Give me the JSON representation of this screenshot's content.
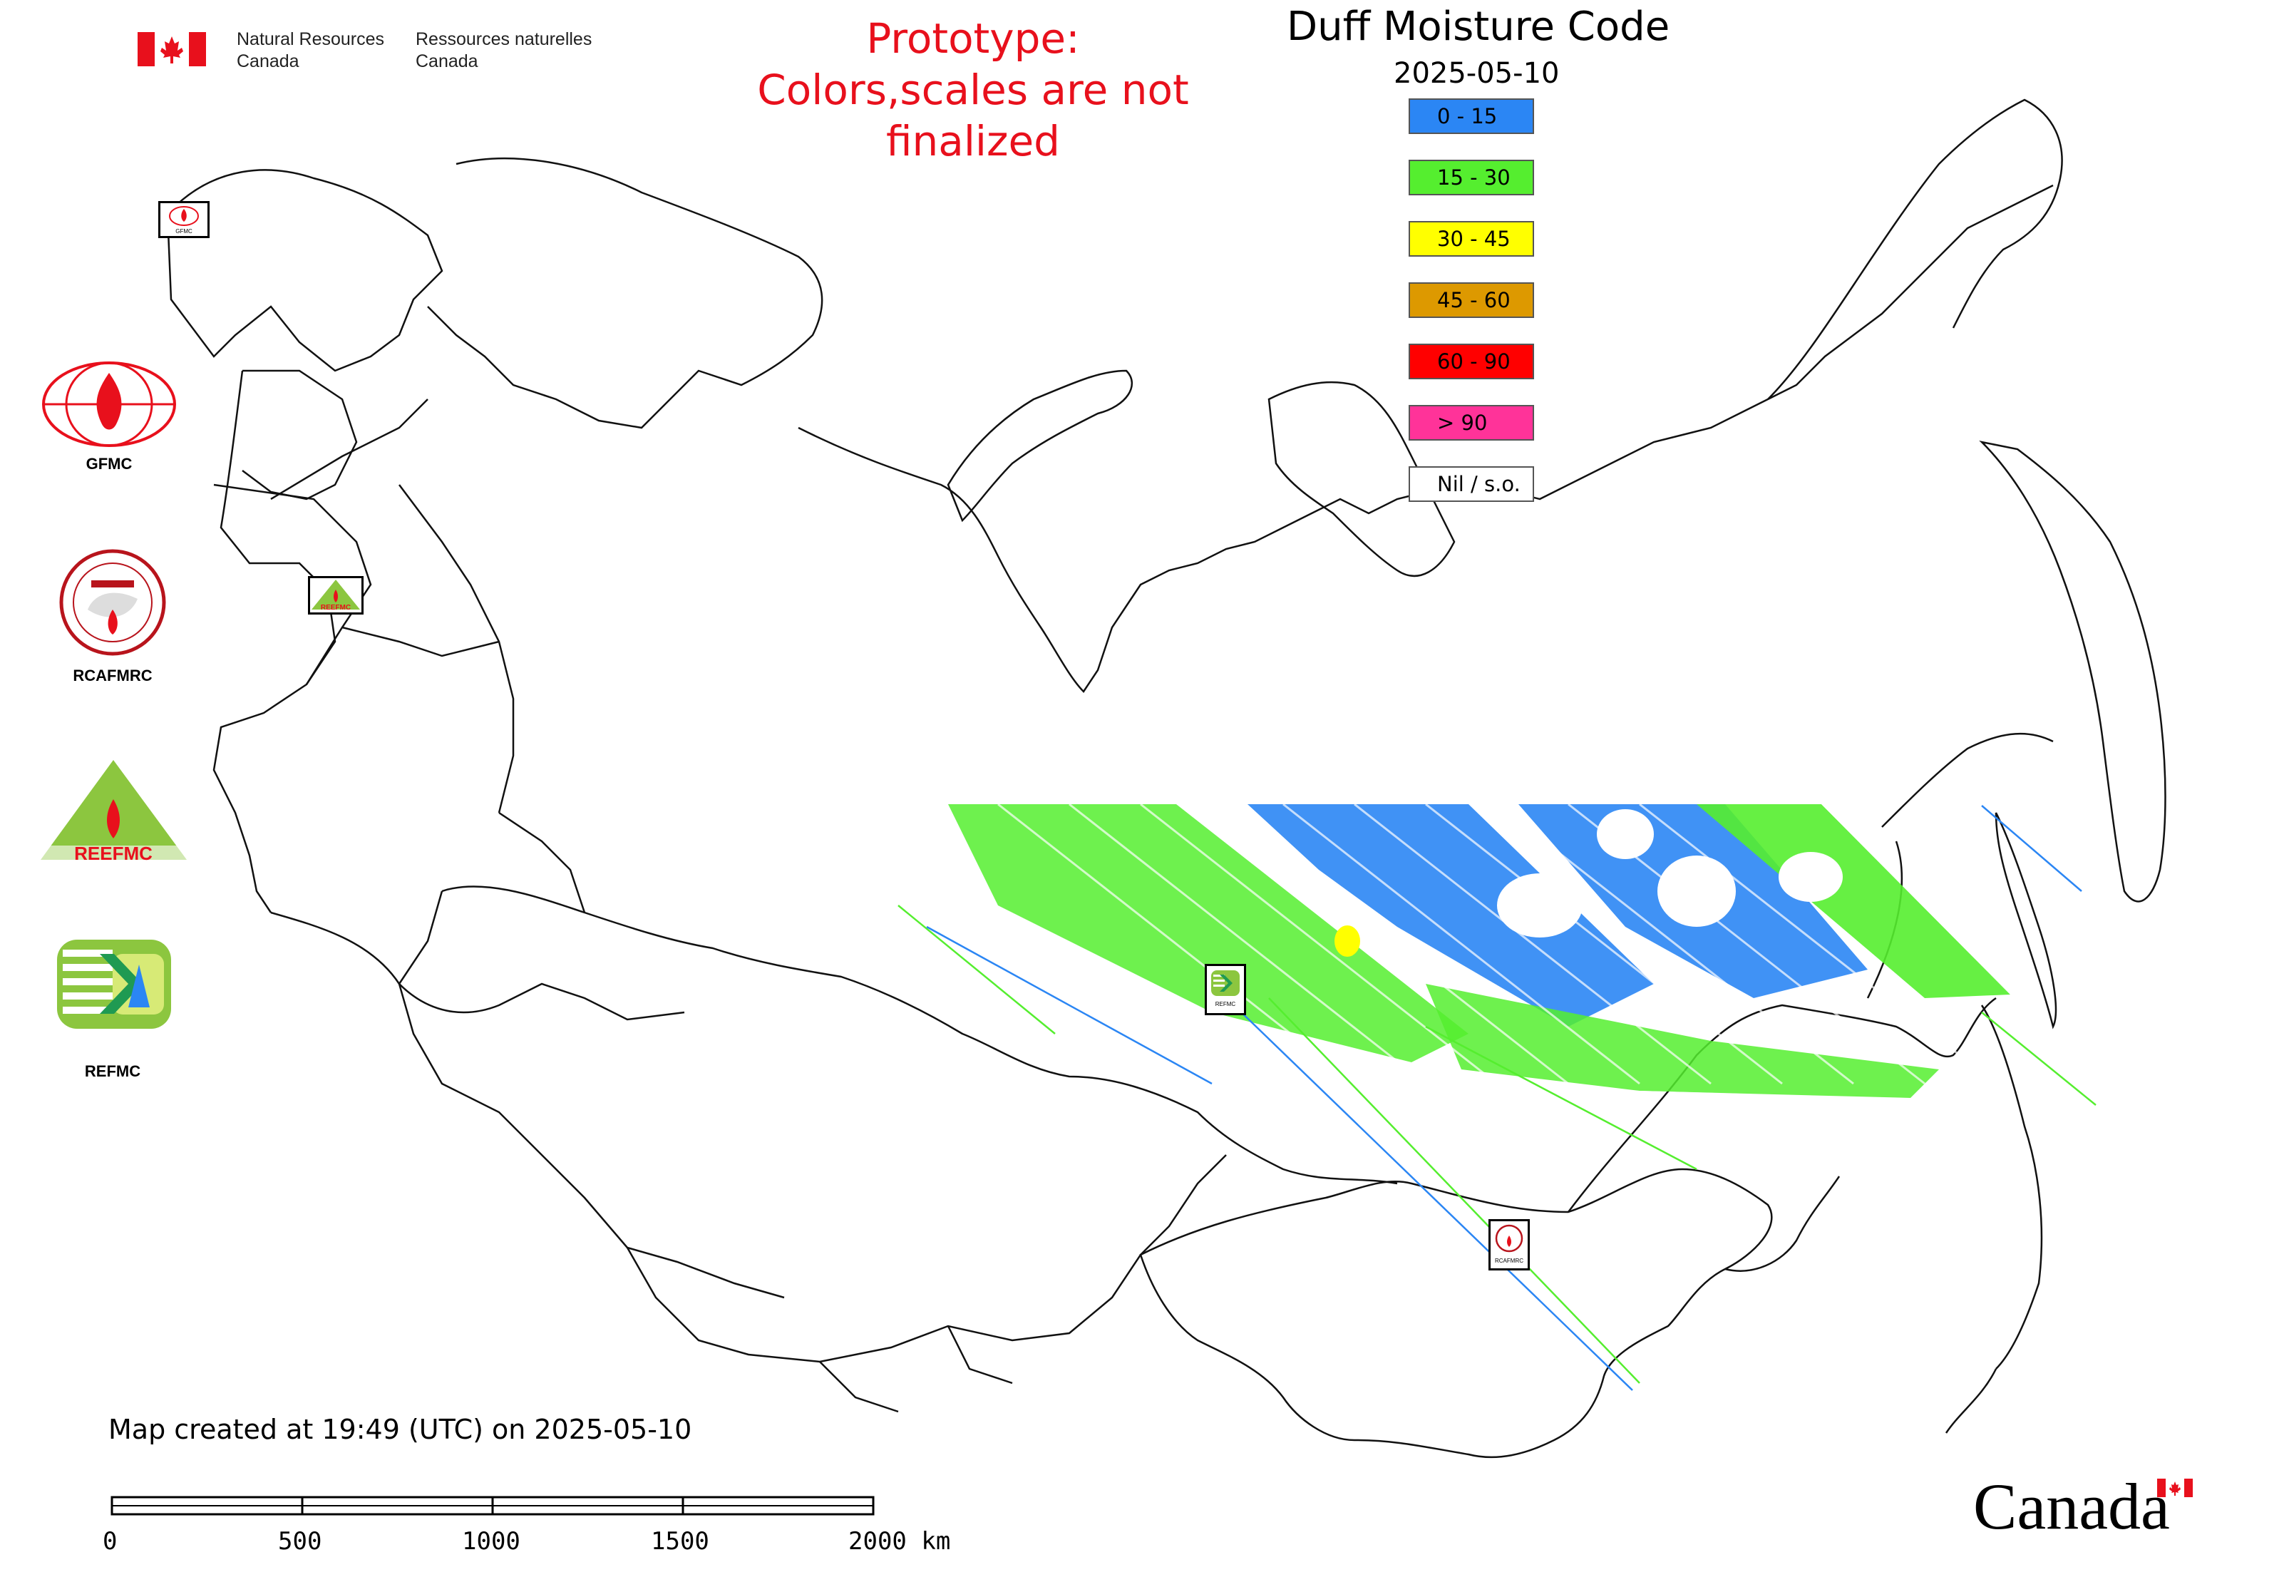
{
  "agency": {
    "name_en_line1": "Natural Resources",
    "name_en_line2": "Canada",
    "name_fr_line1": "Ressources naturelles",
    "name_fr_line2": "Canada"
  },
  "prototype_notice": {
    "line1": "Prototype:",
    "line2": "Colors,scales are not finalized",
    "color": "#e8101c"
  },
  "map": {
    "title": "Duff Moisture Code",
    "date": "2025-05-10"
  },
  "legend": [
    {
      "label": "0 - 15",
      "color": "#2b86f4"
    },
    {
      "label": "15 - 30",
      "color": "#55ee2f"
    },
    {
      "label": "30 - 45",
      "color": "#ffff00"
    },
    {
      "label": "45 - 60",
      "color": "#dd9900"
    },
    {
      "label": "60 - 90",
      "color": "#ff0000"
    },
    {
      "label": "> 90",
      "color": "#ff3399"
    },
    {
      "label": "Nil / s.o.",
      "color": "#ffffff"
    }
  ],
  "logos": [
    {
      "label": "GFMC",
      "icon": "gfmc-logo-icon"
    },
    {
      "label": "RCAFMRC",
      "icon": "rcafmrc-logo-icon"
    },
    {
      "label": "",
      "icon": "reefmc-logo-icon",
      "lettering": "REEFMC"
    },
    {
      "label": "REFMC",
      "icon": "refmc-logo-icon"
    }
  ],
  "map_markers": [
    {
      "label": "GFMC",
      "icon": "gfmc-marker-icon"
    },
    {
      "label": "REEFMC",
      "icon": "reefmc-marker-icon"
    },
    {
      "label": "REFMC",
      "icon": "refmc-marker-icon"
    },
    {
      "label": "RCAFMRC",
      "icon": "rcafmrc-marker-icon"
    }
  ],
  "footer": {
    "created": "Map created at 19:49 (UTC) on 2025-05-10"
  },
  "scale_bar": {
    "ticks": [
      "0",
      "500",
      "1000",
      "1500",
      "2000 km"
    ]
  },
  "wordmark": "Canada"
}
